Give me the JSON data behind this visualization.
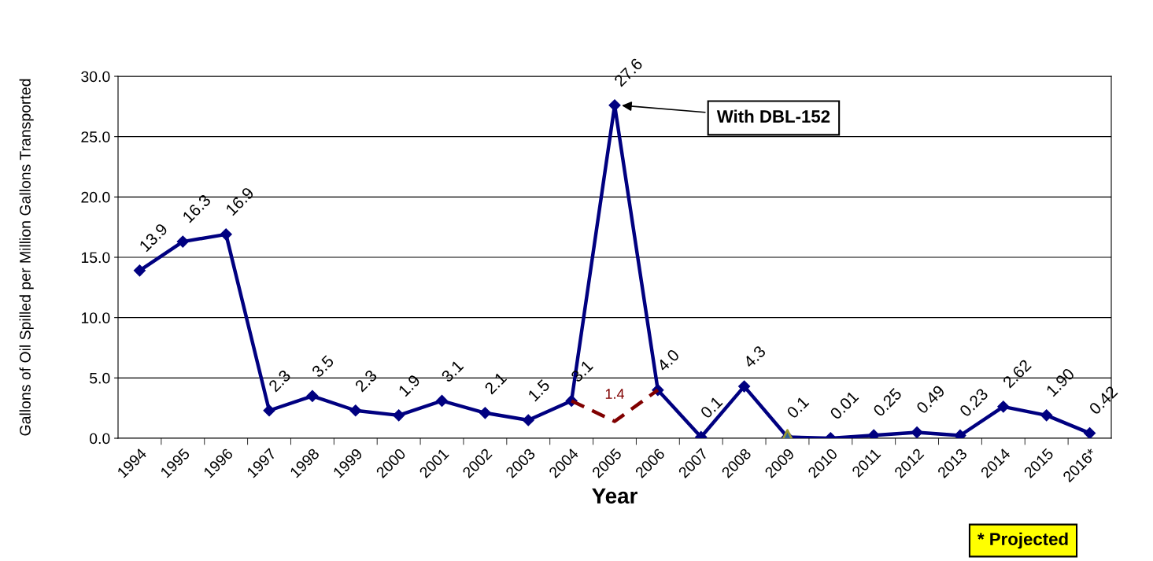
{
  "chart_data": {
    "type": "line",
    "xlabel": "Year",
    "ylabel": "Gallons of Oil Spilled per Million Gallons Transported",
    "categories": [
      "1994",
      "1995",
      "1996",
      "1997",
      "1998",
      "1999",
      "2000",
      "2001",
      "2002",
      "2003",
      "2004",
      "2005",
      "2006",
      "2007",
      "2008",
      "2009",
      "2010",
      "2011",
      "2012",
      "2013",
      "2014",
      "2015",
      "2016*"
    ],
    "series": [
      {
        "color": "#000080",
        "marker": "diamond",
        "line_style": "solid",
        "values": [
          13.9,
          16.3,
          16.9,
          2.3,
          3.5,
          2.3,
          1.9,
          3.1,
          2.1,
          1.5,
          3.1,
          27.6,
          4.0,
          0.1,
          4.3,
          0.1,
          0.01,
          0.25,
          0.49,
          0.23,
          2.62,
          1.9,
          0.42
        ],
        "value_labels": [
          "13.9",
          "16.3",
          "16.9",
          "2.3",
          "3.5",
          "2.3",
          "1.9",
          "3.1",
          "2.1",
          "1.5",
          "3.1",
          "27.6",
          "4.0",
          "0.1",
          "4.3",
          "0.1",
          "0.01",
          "0.25",
          "0.49",
          "0.23",
          "2.62",
          "1.90",
          "0.42"
        ]
      },
      {
        "color": "#800000",
        "marker": "none",
        "line_style": "dashed",
        "values": [
          null,
          null,
          null,
          null,
          null,
          null,
          null,
          null,
          null,
          null,
          3.1,
          1.4,
          4.0,
          null,
          null,
          null,
          null,
          null,
          null,
          null,
          null,
          null,
          null
        ],
        "value_labels": [
          null,
          null,
          null,
          null,
          null,
          null,
          null,
          null,
          null,
          null,
          null,
          "1.4",
          null,
          null,
          null,
          null,
          null,
          null,
          null,
          null,
          null,
          null,
          null
        ]
      },
      {
        "type": "scatter",
        "color": "#336699",
        "marker": "triangle",
        "values": [
          null,
          null,
          null,
          null,
          null,
          null,
          null,
          null,
          null,
          null,
          null,
          null,
          null,
          null,
          null,
          0.1,
          null,
          null,
          null,
          null,
          null,
          null,
          null
        ]
      }
    ],
    "ylim": [
      0,
      30
    ],
    "yticks": [
      {
        "value": 0,
        "label": "0.0"
      },
      {
        "value": 5,
        "label": "5.0"
      },
      {
        "value": 10,
        "label": "10.0"
      },
      {
        "value": 15,
        "label": "15.0"
      },
      {
        "value": 20,
        "label": "20.0"
      },
      {
        "value": 25,
        "label": "25.0"
      },
      {
        "value": 30,
        "label": "30.0"
      }
    ],
    "grid": "y",
    "legend": false,
    "annotations": [
      "With DBL-152",
      "* Projected"
    ]
  }
}
